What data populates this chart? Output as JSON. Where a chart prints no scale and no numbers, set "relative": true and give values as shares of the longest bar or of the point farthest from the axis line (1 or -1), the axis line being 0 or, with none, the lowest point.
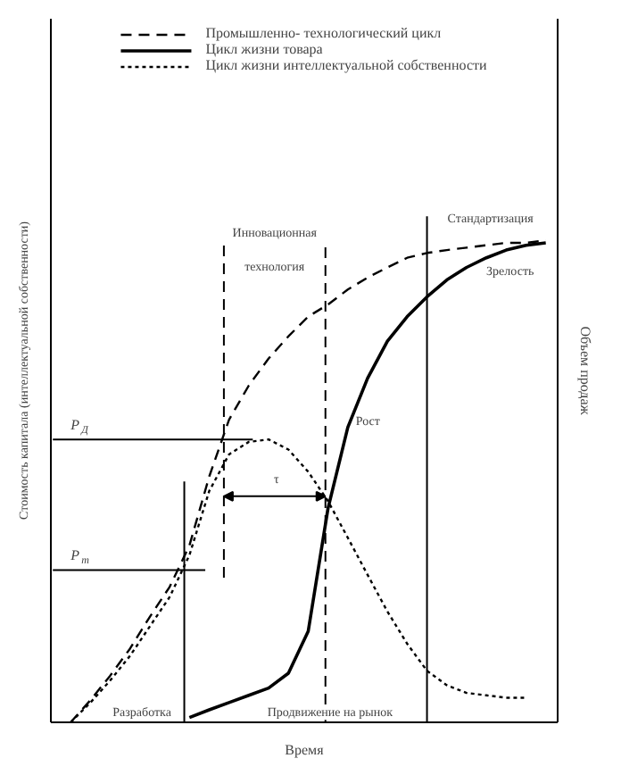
{
  "chart_data": {
    "type": "line",
    "relative": true,
    "xlabel": "Время",
    "ylabel": "Стоимость капитала (интеллектуальной собственности)",
    "y2label": "Объем продаж",
    "categories": [
      null,
      null,
      null,
      null,
      null,
      null,
      null,
      null,
      null,
      null,
      null,
      null,
      null,
      null,
      null,
      null,
      null,
      null,
      null,
      null,
      null,
      null,
      null,
      null,
      null
    ],
    "legend": "top",
    "marker": "none",
    "series": [
      {
        "name": "Промышленно- технологический цикл",
        "color": "#000000",
        "line_style": "dashed",
        "values": [
          0,
          0.046,
          0.097,
          0.153,
          0.219,
          0.281,
          0.367,
          0.51,
          0.628,
          0.699,
          0.755,
          0.801,
          0.842,
          0.867,
          0.898,
          0.923,
          0.944,
          0.964,
          0.974,
          0.98,
          0.985,
          0.99,
          0.995,
          0.995,
          1.0
        ]
      },
      {
        "name": "Цикл жизни товара",
        "color": "#000000",
        "line_style": "solid",
        "values": [
          null,
          null,
          null,
          null,
          null,
          null,
          0.01,
          0.026,
          0.041,
          0.056,
          0.071,
          0.102,
          0.189,
          0.444,
          0.612,
          0.714,
          0.791,
          0.842,
          0.883,
          0.918,
          0.944,
          0.964,
          0.98,
          0.99,
          0.995
        ]
      },
      {
        "name": "Цикл жизни интеллектуальной собственности",
        "color": "#000000",
        "line_style": "dotted",
        "values": [
          0,
          0.041,
          0.087,
          0.138,
          0.199,
          0.26,
          0.347,
          0.48,
          0.556,
          0.582,
          0.587,
          0.566,
          0.52,
          0.459,
          0.383,
          0.306,
          0.23,
          0.163,
          0.107,
          0.077,
          0.061,
          0.056,
          0.051,
          0.051,
          null
        ]
      }
    ],
    "ref_lines": [
      {
        "axis": "y",
        "value": 0.587,
        "color": "#000000",
        "line_style": "solid"
      },
      {
        "axis": "y",
        "value": 0.316,
        "color": "#000000",
        "line_style": "solid"
      }
    ],
    "annotations": [
      "Разработка",
      "Продвижение на рынок",
      "Инновационная технология",
      "Стандартизация",
      "Зрелость",
      "Рост",
      "P$_{Д}$",
      "P$_{т}$",
      "τ"
    ]
  }
}
